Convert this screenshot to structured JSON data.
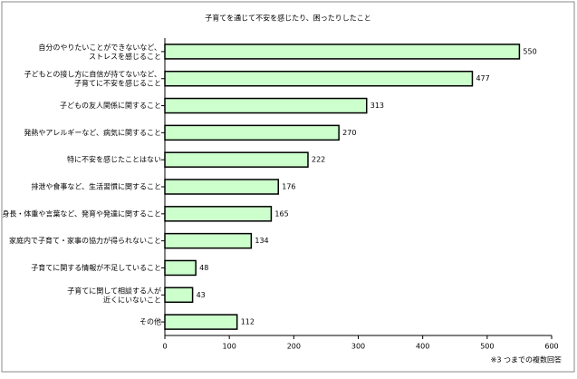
{
  "chart_data": {
    "type": "bar",
    "orientation": "horizontal",
    "title": "子育てを通じて不安を感じたり、困ったりしたこと",
    "note": "※3 つまでの複数回答",
    "categories": [
      "自分のやりたいことができないなど、\nストレスを感じること",
      "子どもとの接し方に自信が持てないなど、\n子育てに不安を感じること",
      "子どもの友人関係に関すること",
      "発熱やアレルギーなど、病気に関すること",
      "特に不安を感じたことはない",
      "排泄や食事など、生活習慣に関すること",
      "身長・体重や言葉など、発育や発達に関すること",
      "家庭内で子育て・家事の協力が得られないこと",
      "子育てに関する情報が不足していること",
      "子育てに関して相談する人が\n近くにいないこと",
      "その他"
    ],
    "values": [
      550,
      477,
      313,
      270,
      222,
      176,
      165,
      134,
      48,
      43,
      112
    ],
    "color": "#ccffcc",
    "xlim": [
      0,
      600
    ],
    "xticks": [
      0,
      100,
      200,
      300,
      400,
      500,
      600
    ]
  }
}
